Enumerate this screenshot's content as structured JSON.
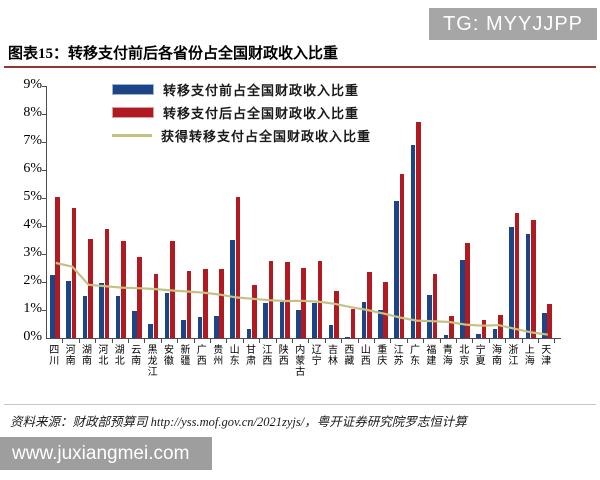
{
  "page": {
    "badge": "TG: MYYJJPP",
    "source": "资料来源：财政部预算司 http://yss.mof.gov.cn/2021zyjs/，粤开证券研究院罗志恒计算",
    "watermark": "www.juxiangmei.com"
  },
  "chart_data": {
    "type": "bar",
    "title": "图表15：转移支付前后各省份占全国财政收入比重",
    "categories": [
      "四川",
      "河南",
      "湖南",
      "河北",
      "湖北",
      "云南",
      "黑龙江",
      "安徽",
      "新疆",
      "广西",
      "贵州",
      "山东",
      "甘肃",
      "江西",
      "陕西",
      "内蒙古",
      "辽宁",
      "吉林",
      "西藏",
      "山西",
      "重庆",
      "江苏",
      "广东",
      "福建",
      "青海",
      "北京",
      "宁夏",
      "海南",
      "浙江",
      "上海",
      "天津"
    ],
    "series": [
      {
        "name": "转移支付前占全国财政收入比重",
        "type": "bar",
        "color": "#1c4587",
        "values": [
          2.25,
          2.05,
          1.5,
          1.95,
          1.5,
          0.95,
          0.5,
          1.6,
          0.65,
          0.75,
          0.8,
          3.5,
          0.32,
          1.25,
          1.3,
          1.0,
          1.25,
          0.45,
          0.05,
          1.3,
          1.0,
          4.9,
          6.9,
          1.55,
          0.1,
          2.8,
          0.15,
          0.33,
          3.95,
          3.7,
          0.9
        ]
      },
      {
        "name": "转移支付后占全国财政收入比重",
        "type": "bar",
        "color": "#b11a21",
        "values": [
          5.05,
          4.65,
          3.55,
          3.9,
          3.45,
          2.9,
          2.3,
          3.45,
          2.4,
          2.45,
          2.45,
          5.05,
          1.9,
          2.75,
          2.7,
          2.5,
          2.75,
          1.67,
          1.05,
          2.37,
          2.0,
          5.85,
          7.7,
          2.3,
          0.8,
          3.4,
          0.65,
          0.82,
          4.45,
          4.2,
          1.2
        ]
      },
      {
        "name": "获得转移支付占全国财政收入比重",
        "type": "line",
        "color": "#c2c285",
        "values": [
          2.68,
          2.55,
          1.9,
          1.85,
          1.8,
          1.78,
          1.75,
          1.7,
          1.66,
          1.62,
          1.55,
          1.45,
          1.4,
          1.35,
          1.32,
          1.33,
          1.3,
          1.22,
          1.1,
          1.0,
          0.87,
          0.73,
          0.62,
          0.6,
          0.57,
          0.48,
          0.44,
          0.46,
          0.33,
          0.2,
          0.12
        ]
      }
    ],
    "ylim": [
      0,
      9
    ],
    "yticks": [
      "0%",
      "1%",
      "2%",
      "3%",
      "4%",
      "5%",
      "6%",
      "7%",
      "8%",
      "9%"
    ],
    "grid": false,
    "legend_position": "inside-top-left"
  }
}
